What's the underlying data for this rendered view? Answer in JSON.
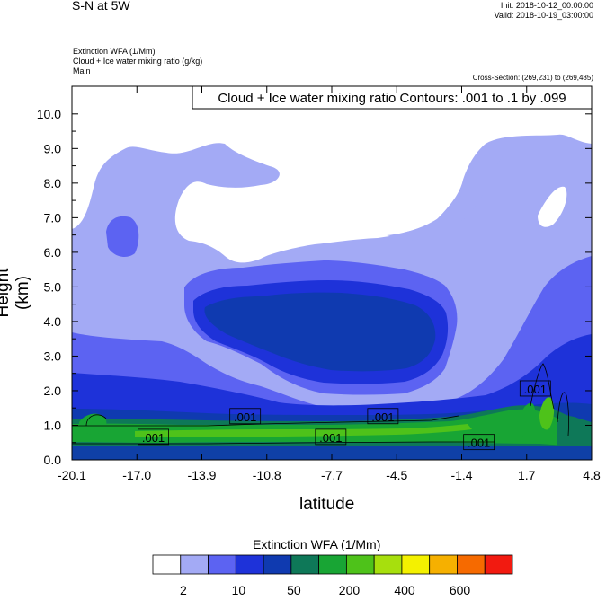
{
  "header": {
    "title": "S-N at 5W",
    "init": "Init: 2018-10-12_00:00:00",
    "valid": "Valid: 2018-10-19_03:00:00",
    "field1": "Extinction WFA   (1/Mm)",
    "field2": "Cloud + Ice water mixing ratio   (g/kg)",
    "field3": "Main",
    "cross_section": "Cross-Section: (269,231) to (269,485)"
  },
  "chart_data": {
    "type": "heatmap",
    "title": "Cloud + Ice water mixing ratio Contours: .001 to .1 by .099",
    "xlabel": "latitude",
    "ylabel": "Height (km)",
    "x_ticks": [
      "-20.1",
      "-17.0",
      "-13.9",
      "-10.8",
      "-7.7",
      "-4.5",
      "-1.4",
      "1.7",
      "4.8"
    ],
    "y_ticks": [
      "0.0",
      "1.0",
      "2.0",
      "3.0",
      "4.0",
      "5.0",
      "6.0",
      "7.0",
      "8.0",
      "9.0",
      "10.0"
    ],
    "xlim": [
      -20.1,
      4.8
    ],
    "ylim": [
      0.0,
      10.8
    ],
    "grid": false,
    "contour_labels": [
      {
        "text": ".001",
        "x": -16.2,
        "y": 0.6
      },
      {
        "text": ".001",
        "x": -11.8,
        "y": 1.2
      },
      {
        "text": ".001",
        "x": -7.7,
        "y": 0.6
      },
      {
        "text": ".001",
        "x": -5.2,
        "y": 1.2
      },
      {
        "text": ".001",
        "x": -0.6,
        "y": 0.45
      },
      {
        "text": ".001",
        "x": 2.1,
        "y": 2.0
      }
    ],
    "colorbar": {
      "title": "Extinction WFA  (1/Mm)",
      "tick_labels": [
        "2",
        "10",
        "50",
        "200",
        "400",
        "600"
      ],
      "colors": [
        "#ffffff",
        "#a3aaf5",
        "#5c63f2",
        "#1e32d9",
        "#0f3ab0",
        "#0e7858",
        "#18a534",
        "#4ec21a",
        "#a7df0d",
        "#f4f100",
        "#f6b000",
        "#f66a00",
        "#f21a10"
      ]
    }
  }
}
